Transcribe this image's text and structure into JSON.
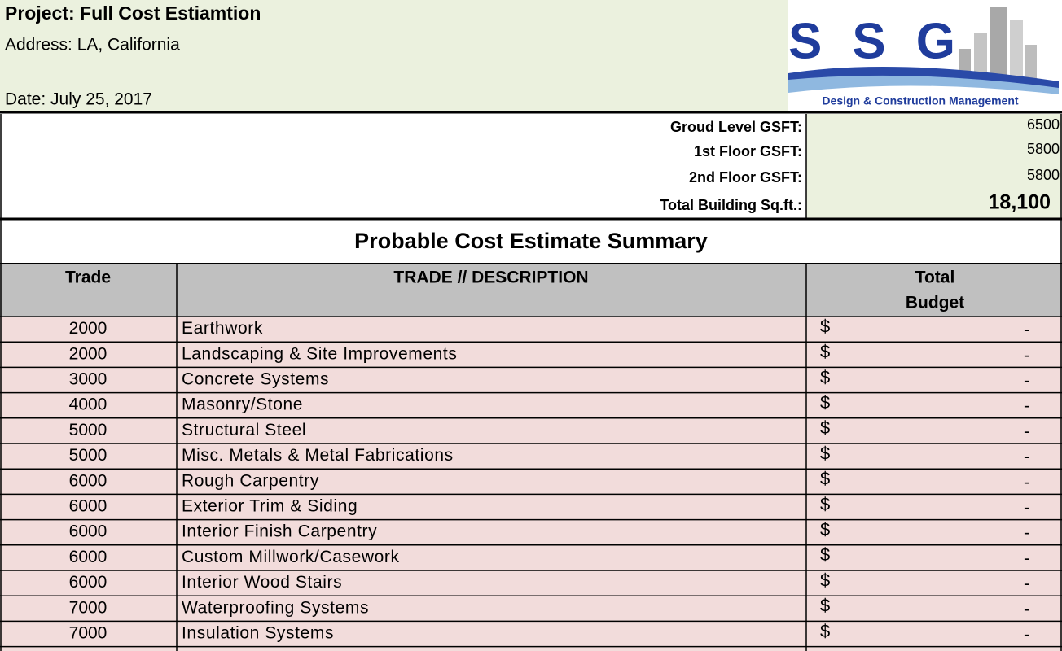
{
  "header": {
    "project": "Project: Full Cost Estiamtion",
    "address": "Address: LA, California",
    "date": "Date: July 25, 2017"
  },
  "logo": {
    "name": "SSG",
    "tagline": "Design & Construction Management"
  },
  "areas": [
    {
      "label": "Groud Level GSFT:",
      "value": "6500"
    },
    {
      "label": "1st Floor GSFT:",
      "value": "5800"
    },
    {
      "label": "2nd Floor GSFT:",
      "value": "5800"
    },
    {
      "label": "Total Building Sq.ft.:",
      "value": "18,100"
    }
  ],
  "summary_title": "Probable Cost Estimate Summary",
  "table": {
    "headers": [
      "Trade",
      "TRADE // DESCRIPTION",
      "Total",
      "Budget"
    ],
    "rows": [
      [
        "2000",
        "Earthwork",
        "$",
        "-"
      ],
      [
        "2000",
        "Landscaping & Site Improvements",
        "$",
        "-"
      ],
      [
        "3000",
        "Concrete Systems",
        "$",
        "-"
      ],
      [
        "4000",
        "Masonry/Stone",
        "$",
        "-"
      ],
      [
        "5000",
        "Structural Steel",
        "$",
        "-"
      ],
      [
        "5000",
        "Misc. Metals & Metal Fabrications",
        "$",
        "-"
      ],
      [
        "6000",
        "Rough Carpentry",
        "$",
        "-"
      ],
      [
        "6000",
        "Exterior Trim & Siding",
        "$",
        "-"
      ],
      [
        "6000",
        "Interior Finish Carpentry",
        "$",
        "-"
      ],
      [
        "6000",
        "Custom Millwork/Casework",
        "$",
        "-"
      ],
      [
        "6000",
        "Interior Wood Stairs",
        "$",
        "-"
      ],
      [
        "7000",
        "Waterproofing Systems",
        "$",
        "-"
      ],
      [
        "7000",
        "Insulation Systems",
        "$",
        "-"
      ]
    ]
  }
}
